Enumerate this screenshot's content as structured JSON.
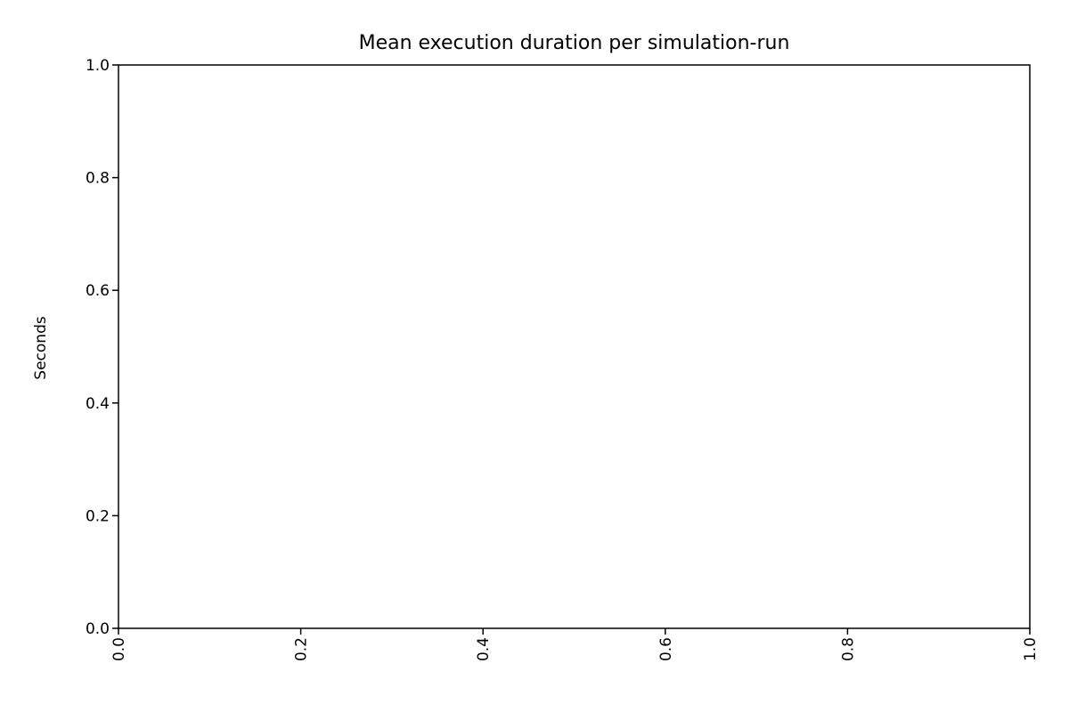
{
  "chart_data": {
    "type": "line",
    "title": "Mean execution duration per simulation-run",
    "xlabel": "",
    "ylabel": "Seconds",
    "xlim": [
      0.0,
      1.0
    ],
    "ylim": [
      0.0,
      1.0
    ],
    "x_ticks": [
      "0.0",
      "0.2",
      "0.4",
      "0.6",
      "0.8",
      "1.0"
    ],
    "y_ticks": [
      "0.0",
      "0.2",
      "0.4",
      "0.6",
      "0.8",
      "1.0"
    ],
    "x_tick_rotation": "vertical",
    "grid": false,
    "legend": "none",
    "series": []
  },
  "colors": {
    "axis": "#000000",
    "background": "#ffffff"
  }
}
